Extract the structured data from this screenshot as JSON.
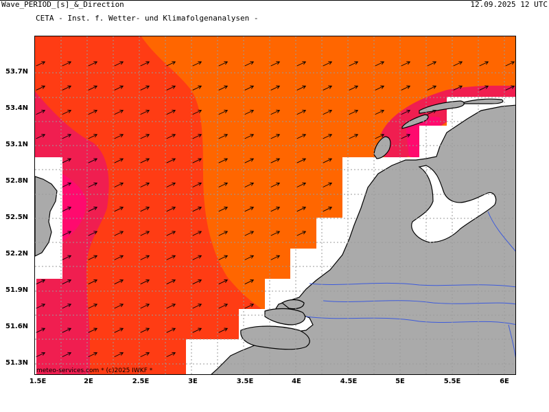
{
  "header": {
    "title": "CETA - Inst. f. Wetter- und Klimafolgenanalysen -",
    "product": "Wave_PERIOD_[s]_&_Direction",
    "valid_time": "12.09.2025 12 UTC"
  },
  "map": {
    "lat_labels": [
      "53.7N",
      "53.4N",
      "53.1N",
      "52.8N",
      "52.5N",
      "52.2N",
      "51.9N",
      "51.6N",
      "51.3N"
    ],
    "lon_labels": [
      "1.5E",
      "2E",
      "2.5E",
      "3E",
      "3.5E",
      "4E",
      "4.5E",
      "5E",
      "5.5E",
      "6E"
    ],
    "credit": "meteo-services.com * (c)2025 IWKF *",
    "colors": {
      "period_high": "#ff6600",
      "period_mid": "#ff3c14",
      "period_low": "#f01e50",
      "period_lowest": "#ff0a6e",
      "land": "#aaaaaa",
      "rivers": "#3c5adc"
    }
  }
}
